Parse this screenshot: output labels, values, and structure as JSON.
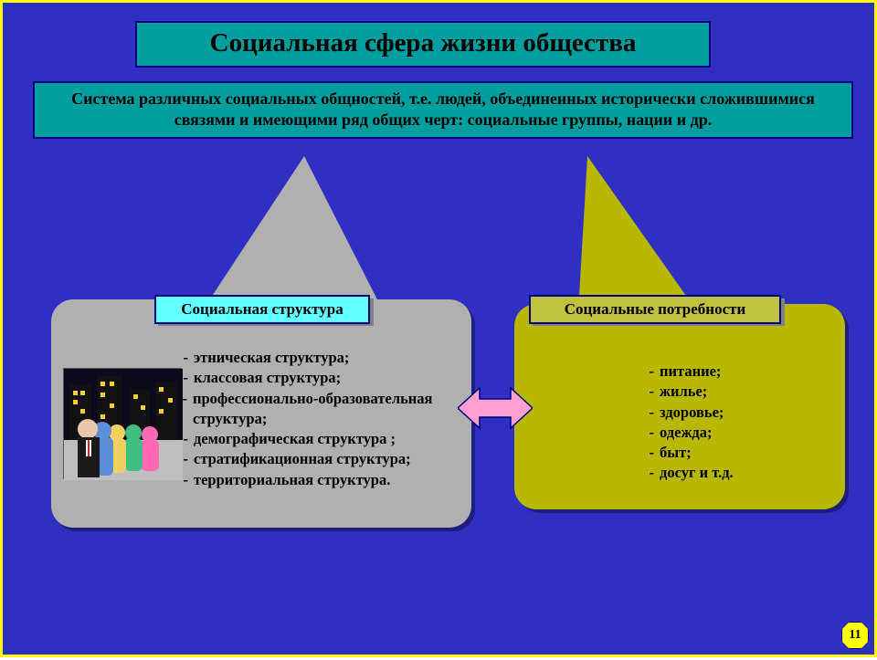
{
  "colors": {
    "bg": "#2f2fc2",
    "border": "#ffff00",
    "title_fill": "#009e9e",
    "title_text": "#000000",
    "title_border": "#000080",
    "def_fill": "#009e9e",
    "def_border": "#000080",
    "card_left_fill": "#b0b0b0",
    "card_right_fill": "#b8b800",
    "subtitle_left_fill": "#63ffff",
    "subtitle_right_fill": "#c1c141",
    "subtitle_shadow": "#808080",
    "subtitle_border": "#000080",
    "list_text": "#000000",
    "arrow_fill": "#ff9ecf",
    "arrow_border": "#000080",
    "callout_left": "#b0b0b0",
    "callout_right": "#b8b800",
    "badge_fill": "#ffff00",
    "badge_border": "#000080"
  },
  "title": "Социальная сфера жизни общества",
  "definition": "Система различных социальных общностей, т.е. людей, объединенных исторически сложившимися связями и имеющими ряд общих черт: социальные группы, нации и др.",
  "left": {
    "subtitle": "Социальная структура",
    "items": [
      "этническая структура;",
      " классовая структура;",
      "                        профессионально-образовательная структура;",
      "демографическая структура ;",
      "стратификационная структура;",
      "территориальная структура."
    ]
  },
  "right": {
    "subtitle": "Социальные потребности",
    "items": [
      "питание;",
      "жилье;",
      "здоровье;",
      "одежда;",
      "быт;",
      "досуг и т.д."
    ]
  },
  "page": "11"
}
